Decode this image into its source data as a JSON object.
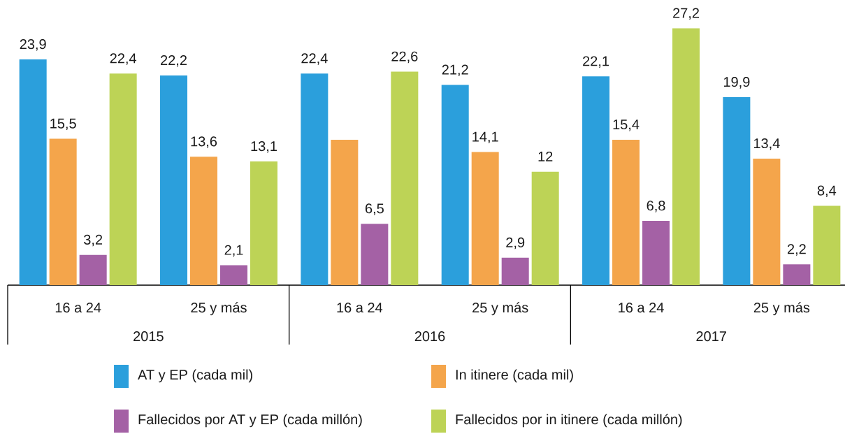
{
  "chart_data": {
    "type": "bar",
    "categories": [
      "16 a 24",
      "25 y más",
      "16 a 24",
      "25 y más",
      "16 a 24",
      "25 y más"
    ],
    "series": [
      {
        "name": "AT y EP (cada mil)",
        "color": "#2b9fdc",
        "values": [
          23.9,
          22.2,
          22.4,
          21.2,
          22.1,
          19.9
        ],
        "value_labels": [
          "23,9",
          "22,2",
          "22,4",
          "21,2",
          "22,1",
          "19,9"
        ]
      },
      {
        "name": "In itinere (cada mil)",
        "color": "#f4a54b",
        "values": [
          15.5,
          13.6,
          15.4,
          14.1,
          15.4,
          13.4
        ],
        "value_labels": [
          "15,5",
          "13,6",
          null,
          "14,1",
          "15,4",
          "13,4"
        ]
      },
      {
        "name": "Fallecidos por AT y EP (cada millón)",
        "color": "#a461a5",
        "values": [
          3.2,
          2.1,
          6.5,
          2.9,
          6.8,
          2.2
        ],
        "value_labels": [
          "3,2",
          "2,1",
          "6,5",
          "2,9",
          "6,8",
          "2,2"
        ]
      },
      {
        "name": "Fallecidos por in itinere (cada millón)",
        "color": "#bdd356",
        "values": [
          22.4,
          13.1,
          22.6,
          12,
          27.2,
          8.4
        ],
        "value_labels": [
          "22,4",
          "13,1",
          "22,6",
          "12",
          "27,2",
          "8,4"
        ]
      }
    ],
    "annotations": [
      "2015",
      "2016",
      "2017"
    ],
    "legend": "bottom"
  }
}
